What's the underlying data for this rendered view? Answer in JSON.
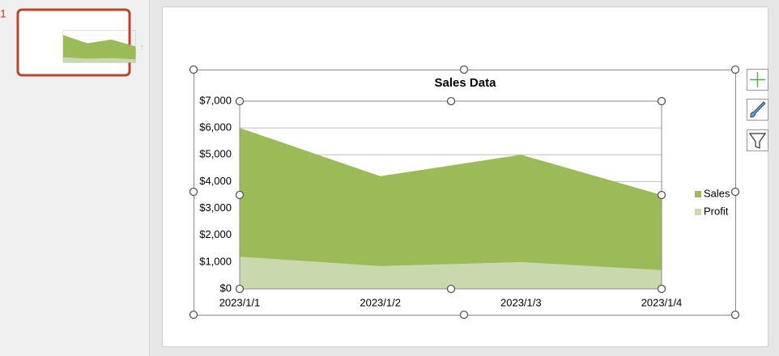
{
  "slide_number": "1",
  "chart_data": {
    "type": "area",
    "title": "Sales Data",
    "categories": [
      "2023/1/1",
      "2023/1/2",
      "2023/1/3",
      "2023/1/4"
    ],
    "series": [
      {
        "name": "Sales",
        "color": "#9bbb59",
        "values": [
          6000,
          4200,
          5000,
          3500
        ]
      },
      {
        "name": "Profit",
        "color": "#c9d9ad",
        "values": [
          1200,
          850,
          1000,
          700
        ]
      }
    ],
    "ylim": [
      0,
      7000
    ],
    "yticks": [
      {
        "value": 0,
        "label": "$0"
      },
      {
        "value": 1000,
        "label": "$1,000"
      },
      {
        "value": 2000,
        "label": "$2,000"
      },
      {
        "value": 3000,
        "label": "$3,000"
      },
      {
        "value": 4000,
        "label": "$4,000"
      },
      {
        "value": 5000,
        "label": "$5,000"
      },
      {
        "value": 6000,
        "label": "$6,000"
      },
      {
        "value": 7000,
        "label": "$7,000"
      }
    ],
    "grid": true,
    "legend": "right"
  }
}
